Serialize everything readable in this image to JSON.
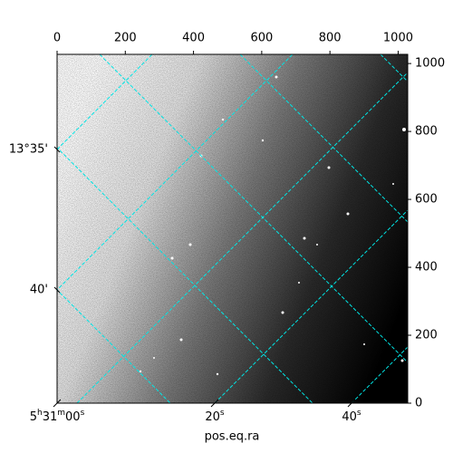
{
  "chart_data": {
    "type": "image",
    "xlabel": "pos.eq.ra",
    "xlim": [
      0,
      1028
    ],
    "xticks": [
      0,
      200,
      400,
      600,
      800,
      1000
    ],
    "ylim": [
      0,
      1027
    ],
    "yticks": [
      0,
      200,
      400,
      600,
      800,
      1000
    ],
    "ra_ticks": [
      "5h31m00s",
      "20s",
      "40s"
    ],
    "dec_ticks": [
      "13°35'",
      "40'"
    ],
    "grid": true,
    "grid_color": "#00e5e5"
  }
}
